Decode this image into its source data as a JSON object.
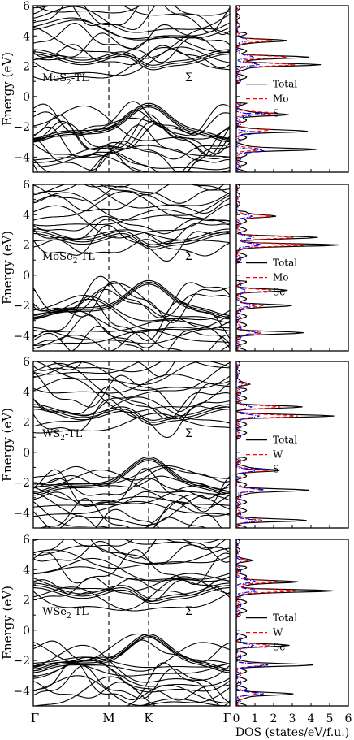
{
  "figure": {
    "x_axis_label": "DOS (states/eV/f.u.)",
    "y_axis_label": "Energy (eV)",
    "k_labels": [
      "Γ",
      "M",
      "K",
      "Γ"
    ],
    "sigma_label": "Σ",
    "dos_ticks": [
      "0",
      "1",
      "2",
      "3",
      "4",
      "5",
      "6"
    ],
    "energy_ticks": [
      "6",
      "4",
      "2",
      "0",
      "-2",
      "-4"
    ]
  },
  "chart_data": [
    {
      "type": "line",
      "title": "MoS₂-TL",
      "panel_label": {
        "main": "MoS",
        "sub": "2",
        "suffix": "-TL"
      },
      "band_structure": {
        "k_points": [
          "Γ",
          "M",
          "K",
          "Γ"
        ],
        "ylim": [
          -5,
          6
        ],
        "ylabel": "Energy (eV)",
        "conduction_band_min": 0.85,
        "valence_band_max": -0.45,
        "valence_max_at": "K"
      },
      "dos": {
        "xlabel": "DOS (states/eV/f.u.)",
        "xlim": [
          0,
          6
        ],
        "legend": [
          "Total",
          "Mo",
          "S"
        ],
        "series": [
          {
            "name": "Total",
            "style": "solid",
            "color": "#000000",
            "peaks": [
              [
                -3.5,
                4.2
              ],
              [
                -2.3,
                3.6
              ],
              [
                -1.2,
                2.7
              ],
              [
                2.1,
                4.5
              ],
              [
                2.6,
                3.7
              ],
              [
                3.7,
                2.4
              ]
            ]
          },
          {
            "name": "Mo",
            "style": "dashed",
            "color": "#ff0000",
            "peaks": [
              [
                -3.5,
                1.2
              ],
              [
                -2.2,
                1.6
              ],
              [
                -1.1,
                1.8
              ],
              [
                2.1,
                3.1
              ],
              [
                2.6,
                2.7
              ],
              [
                3.7,
                1.9
              ]
            ]
          },
          {
            "name": "S",
            "style": "dashdot",
            "color": "#0000ff",
            "peaks": [
              [
                -3.6,
                1.3
              ],
              [
                -2.4,
                1.0
              ],
              [
                -1.2,
                0.6
              ],
              [
                2.1,
                1.0
              ],
              [
                2.6,
                0.8
              ],
              [
                3.7,
                0.6
              ]
            ]
          }
        ]
      }
    },
    {
      "type": "line",
      "title": "MoSe₂-TL",
      "panel_label": {
        "main": "MoSe",
        "sub": "2",
        "suffix": "-TL"
      },
      "band_structure": {
        "k_points": [
          "Γ",
          "M",
          "K",
          "Γ"
        ],
        "ylim": [
          -5,
          6
        ],
        "ylabel": "Energy (eV)",
        "conduction_band_min": 0.8,
        "valence_band_max": -0.35,
        "valence_max_at": "K"
      },
      "dos": {
        "xlabel": "DOS (states/eV/f.u.)",
        "xlim": [
          0,
          6
        ],
        "legend": [
          "Total",
          "Mo",
          "Se"
        ],
        "series": [
          {
            "name": "Total",
            "style": "solid",
            "color": "#000000",
            "peaks": [
              [
                -3.8,
                3.1
              ],
              [
                -2.0,
                2.7
              ],
              [
                -1.0,
                2.2
              ],
              [
                2.0,
                5.2
              ],
              [
                2.5,
                3.9
              ],
              [
                3.9,
                2.1
              ]
            ]
          },
          {
            "name": "Mo",
            "style": "dashed",
            "color": "#ff0000",
            "peaks": [
              [
                -3.8,
                1.3
              ],
              [
                -2.0,
                1.5
              ],
              [
                -1.0,
                1.7
              ],
              [
                2.0,
                3.8
              ],
              [
                2.5,
                3.0
              ],
              [
                3.9,
                1.7
              ]
            ]
          },
          {
            "name": "Se",
            "style": "dashdot",
            "color": "#0000ff",
            "peaks": [
              [
                -3.8,
                1.1
              ],
              [
                -2.0,
                0.9
              ],
              [
                -1.0,
                0.5
              ],
              [
                2.0,
                1.3
              ],
              [
                2.5,
                0.9
              ],
              [
                3.9,
                0.6
              ]
            ]
          }
        ]
      }
    },
    {
      "type": "line",
      "title": "WS₂-TL",
      "panel_label": {
        "main": "WS",
        "sub": "2",
        "suffix": "-TL"
      },
      "band_structure": {
        "k_points": [
          "Γ",
          "M",
          "K",
          "Γ"
        ],
        "ylim": [
          -5,
          6
        ],
        "ylabel": "Energy (eV)",
        "conduction_band_min": 0.9,
        "valence_band_max": -0.3,
        "valence_max_at": "K"
      },
      "dos": {
        "xlabel": "DOS (states/eV/f.u.)",
        "xlim": [
          0,
          6
        ],
        "legend": [
          "Total",
          "W",
          "S"
        ],
        "series": [
          {
            "name": "Total",
            "style": "solid",
            "color": "#000000",
            "peaks": [
              [
                -4.5,
                3.3
              ],
              [
                -2.5,
                3.8
              ],
              [
                -1.2,
                2.2
              ],
              [
                2.4,
                4.7
              ],
              [
                3.0,
                3.0
              ],
              [
                4.5,
                2.0
              ]
            ]
          },
          {
            "name": "W",
            "style": "dashed",
            "color": "#ff0000",
            "peaks": [
              [
                -4.5,
                1.2
              ],
              [
                -2.5,
                1.4
              ],
              [
                -1.2,
                1.5
              ],
              [
                2.4,
                3.1
              ],
              [
                3.0,
                2.2
              ],
              [
                4.5,
                1.4
              ]
            ]
          },
          {
            "name": "S",
            "style": "dashdot",
            "color": "#0000ff",
            "peaks": [
              [
                -4.5,
                1.0
              ],
              [
                -2.5,
                1.4
              ],
              [
                -1.2,
                0.8
              ],
              [
                2.4,
                1.2
              ],
              [
                3.0,
                0.8
              ],
              [
                4.5,
                0.8
              ]
            ]
          }
        ]
      }
    },
    {
      "type": "line",
      "title": "WSe₂-TL",
      "panel_label": {
        "main": "WSe",
        "sub": "2",
        "suffix": "-TL"
      },
      "band_structure": {
        "k_points": [
          "Γ",
          "M",
          "K",
          "Γ"
        ],
        "ylim": [
          -5,
          6
        ],
        "ylabel": "Energy (eV)",
        "conduction_band_min": 0.85,
        "valence_band_max": -0.25,
        "valence_max_at": "K"
      },
      "dos": {
        "xlabel": "DOS (states/eV/f.u.)",
        "xlim": [
          0,
          6
        ],
        "legend": [
          "Total",
          "W",
          "Se"
        ],
        "series": [
          {
            "name": "Total",
            "style": "solid",
            "color": "#000000",
            "peaks": [
              [
                -4.2,
                3.0
              ],
              [
                -2.3,
                3.9
              ],
              [
                -1.0,
                2.3
              ],
              [
                2.6,
                5.0
              ],
              [
                3.2,
                3.2
              ],
              [
                4.6,
                2.1
              ]
            ]
          },
          {
            "name": "W",
            "style": "dashed",
            "color": "#ff0000",
            "peaks": [
              [
                -4.2,
                1.1
              ],
              [
                -2.3,
                1.3
              ],
              [
                -1.0,
                1.6
              ],
              [
                2.6,
                3.3
              ],
              [
                3.2,
                2.3
              ],
              [
                4.6,
                1.4
              ]
            ]
          },
          {
            "name": "Se",
            "style": "dashdot",
            "color": "#0000ff",
            "peaks": [
              [
                -4.2,
                1.3
              ],
              [
                -2.3,
                1.5
              ],
              [
                -1.0,
                0.9
              ],
              [
                2.6,
                1.1
              ],
              [
                3.2,
                0.9
              ],
              [
                4.6,
                0.7
              ]
            ]
          }
        ]
      }
    }
  ]
}
